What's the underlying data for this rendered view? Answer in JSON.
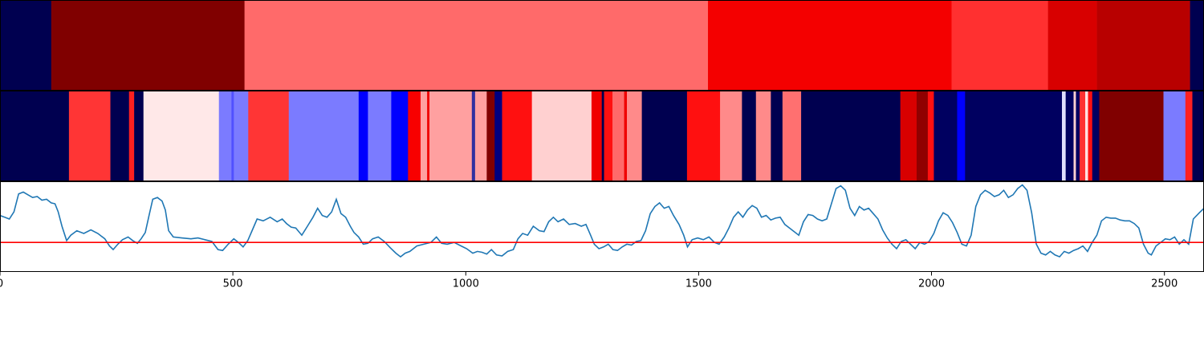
{
  "figure": {
    "background": "#ffffff",
    "frame_color": "#000000",
    "line_color": "#1f77b4",
    "threshold_color": "#ff0000"
  },
  "chart_data": [
    {
      "type": "heatmap",
      "panel": "top",
      "xlim": [
        0,
        2585
      ],
      "segments": [
        {
          "start": 0,
          "end": 110,
          "color": "#000050"
        },
        {
          "start": 110,
          "end": 525,
          "color": "#800000"
        },
        {
          "start": 525,
          "end": 1520,
          "color": "#ff6a6a"
        },
        {
          "start": 1520,
          "end": 2043,
          "color": "#f40000"
        },
        {
          "start": 2043,
          "end": 2250,
          "color": "#ff3030"
        },
        {
          "start": 2250,
          "end": 2355,
          "color": "#d80000"
        },
        {
          "start": 2355,
          "end": 2555,
          "color": "#b80000"
        },
        {
          "start": 2555,
          "end": 2585,
          "color": "#000050"
        }
      ]
    },
    {
      "type": "heatmap",
      "panel": "middle",
      "xlim": [
        0,
        2585
      ],
      "segments": [
        {
          "start": 0,
          "end": 148,
          "color": "#000050"
        },
        {
          "start": 148,
          "end": 237,
          "color": "#ff3535"
        },
        {
          "start": 237,
          "end": 277,
          "color": "#000050"
        },
        {
          "start": 277,
          "end": 288,
          "color": "#ff2020"
        },
        {
          "start": 288,
          "end": 308,
          "color": "#000050"
        },
        {
          "start": 308,
          "end": 470,
          "color": "#ffe8e8"
        },
        {
          "start": 470,
          "end": 497,
          "color": "#7b7bff"
        },
        {
          "start": 497,
          "end": 502,
          "color": "#5050ff"
        },
        {
          "start": 502,
          "end": 533,
          "color": "#7b7bff"
        },
        {
          "start": 533,
          "end": 620,
          "color": "#ff3535"
        },
        {
          "start": 620,
          "end": 770,
          "color": "#7b7bff"
        },
        {
          "start": 770,
          "end": 790,
          "color": "#0000ff"
        },
        {
          "start": 790,
          "end": 840,
          "color": "#7b7bff"
        },
        {
          "start": 840,
          "end": 876,
          "color": "#0000ff"
        },
        {
          "start": 876,
          "end": 903,
          "color": "#f80000"
        },
        {
          "start": 903,
          "end": 917,
          "color": "#ffa0a0"
        },
        {
          "start": 917,
          "end": 922,
          "color": "#f00000"
        },
        {
          "start": 922,
          "end": 1013,
          "color": "#ffa0a0"
        },
        {
          "start": 1013,
          "end": 1020,
          "color": "#3030a0"
        },
        {
          "start": 1020,
          "end": 1045,
          "color": "#ffa0a0"
        },
        {
          "start": 1045,
          "end": 1062,
          "color": "#800000"
        },
        {
          "start": 1062,
          "end": 1078,
          "color": "#000080"
        },
        {
          "start": 1078,
          "end": 1142,
          "color": "#ff1010"
        },
        {
          "start": 1142,
          "end": 1270,
          "color": "#ffd0d0"
        },
        {
          "start": 1270,
          "end": 1292,
          "color": "#f00000"
        },
        {
          "start": 1292,
          "end": 1297,
          "color": "#000050"
        },
        {
          "start": 1297,
          "end": 1315,
          "color": "#ff1010"
        },
        {
          "start": 1315,
          "end": 1340,
          "color": "#ff6a6a"
        },
        {
          "start": 1340,
          "end": 1346,
          "color": "#f00000"
        },
        {
          "start": 1346,
          "end": 1378,
          "color": "#ff8a8a"
        },
        {
          "start": 1378,
          "end": 1475,
          "color": "#000050"
        },
        {
          "start": 1475,
          "end": 1546,
          "color": "#ff1010"
        },
        {
          "start": 1546,
          "end": 1593,
          "color": "#ff8a8a"
        },
        {
          "start": 1593,
          "end": 1623,
          "color": "#000050"
        },
        {
          "start": 1623,
          "end": 1655,
          "color": "#ff8a8a"
        },
        {
          "start": 1655,
          "end": 1680,
          "color": "#000050"
        },
        {
          "start": 1680,
          "end": 1720,
          "color": "#ff7070"
        },
        {
          "start": 1720,
          "end": 1933,
          "color": "#000050"
        },
        {
          "start": 1933,
          "end": 1968,
          "color": "#d80000"
        },
        {
          "start": 1968,
          "end": 1992,
          "color": "#900000"
        },
        {
          "start": 1992,
          "end": 2005,
          "color": "#ff1010"
        },
        {
          "start": 2005,
          "end": 2055,
          "color": "#000060"
        },
        {
          "start": 2055,
          "end": 2072,
          "color": "#0000ff"
        },
        {
          "start": 2072,
          "end": 2280,
          "color": "#000060"
        },
        {
          "start": 2280,
          "end": 2288,
          "color": "#e0e0ff"
        },
        {
          "start": 2288,
          "end": 2305,
          "color": "#000060"
        },
        {
          "start": 2305,
          "end": 2310,
          "color": "#ffd0d0"
        },
        {
          "start": 2310,
          "end": 2318,
          "color": "#000060"
        },
        {
          "start": 2318,
          "end": 2330,
          "color": "#ff3030"
        },
        {
          "start": 2330,
          "end": 2336,
          "color": "#ffe0e0"
        },
        {
          "start": 2336,
          "end": 2345,
          "color": "#ff1010"
        },
        {
          "start": 2345,
          "end": 2360,
          "color": "#000060"
        },
        {
          "start": 2360,
          "end": 2498,
          "color": "#800000"
        },
        {
          "start": 2498,
          "end": 2545,
          "color": "#7b7bff"
        },
        {
          "start": 2545,
          "end": 2560,
          "color": "#ff2020"
        },
        {
          "start": 2560,
          "end": 2585,
          "color": "#000050"
        }
      ]
    },
    {
      "type": "line",
      "panel": "bottom",
      "xlim": [
        0,
        2585
      ],
      "ylim": [
        0,
        1
      ],
      "threshold": 0.32,
      "xticks": [
        0,
        500,
        1000,
        1500,
        2000,
        2500
      ],
      "xticklabels": [
        "0",
        "500",
        "1000",
        "1500",
        "2000",
        "2500"
      ],
      "points": [
        [
          0,
          0.62
        ],
        [
          10,
          0.6
        ],
        [
          20,
          0.58
        ],
        [
          30,
          0.66
        ],
        [
          40,
          0.86
        ],
        [
          50,
          0.88
        ],
        [
          60,
          0.85
        ],
        [
          70,
          0.82
        ],
        [
          80,
          0.83
        ],
        [
          90,
          0.79
        ],
        [
          100,
          0.8
        ],
        [
          110,
          0.76
        ],
        [
          118,
          0.75
        ],
        [
          125,
          0.66
        ],
        [
          133,
          0.5
        ],
        [
          143,
          0.34
        ],
        [
          152,
          0.4
        ],
        [
          165,
          0.45
        ],
        [
          180,
          0.42
        ],
        [
          195,
          0.46
        ],
        [
          210,
          0.42
        ],
        [
          225,
          0.36
        ],
        [
          235,
          0.28
        ],
        [
          243,
          0.24
        ],
        [
          253,
          0.3
        ],
        [
          263,
          0.35
        ],
        [
          275,
          0.38
        ],
        [
          285,
          0.34
        ],
        [
          295,
          0.31
        ],
        [
          303,
          0.36
        ],
        [
          312,
          0.43
        ],
        [
          320,
          0.62
        ],
        [
          328,
          0.8
        ],
        [
          338,
          0.82
        ],
        [
          348,
          0.78
        ],
        [
          355,
          0.68
        ],
        [
          362,
          0.45
        ],
        [
          372,
          0.38
        ],
        [
          390,
          0.37
        ],
        [
          410,
          0.36
        ],
        [
          425,
          0.37
        ],
        [
          440,
          0.35
        ],
        [
          455,
          0.33
        ],
        [
          468,
          0.24
        ],
        [
          478,
          0.23
        ],
        [
          490,
          0.3
        ],
        [
          502,
          0.36
        ],
        [
          512,
          0.32
        ],
        [
          522,
          0.27
        ],
        [
          532,
          0.34
        ],
        [
          542,
          0.46
        ],
        [
          552,
          0.58
        ],
        [
          565,
          0.56
        ],
        [
          580,
          0.6
        ],
        [
          595,
          0.55
        ],
        [
          606,
          0.58
        ],
        [
          615,
          0.53
        ],
        [
          625,
          0.49
        ],
        [
          635,
          0.48
        ],
        [
          648,
          0.4
        ],
        [
          660,
          0.5
        ],
        [
          672,
          0.6
        ],
        [
          682,
          0.7
        ],
        [
          692,
          0.62
        ],
        [
          702,
          0.6
        ],
        [
          712,
          0.66
        ],
        [
          722,
          0.8
        ],
        [
          732,
          0.64
        ],
        [
          742,
          0.6
        ],
        [
          752,
          0.5
        ],
        [
          760,
          0.43
        ],
        [
          770,
          0.38
        ],
        [
          780,
          0.3
        ],
        [
          790,
          0.31
        ],
        [
          800,
          0.36
        ],
        [
          812,
          0.38
        ],
        [
          825,
          0.33
        ],
        [
          838,
          0.26
        ],
        [
          850,
          0.2
        ],
        [
          860,
          0.16
        ],
        [
          870,
          0.2
        ],
        [
          880,
          0.22
        ],
        [
          895,
          0.28
        ],
        [
          910,
          0.3
        ],
        [
          925,
          0.32
        ],
        [
          937,
          0.38
        ],
        [
          948,
          0.31
        ],
        [
          960,
          0.3
        ],
        [
          975,
          0.32
        ],
        [
          990,
          0.28
        ],
        [
          1002,
          0.25
        ],
        [
          1015,
          0.2
        ],
        [
          1025,
          0.22
        ],
        [
          1035,
          0.21
        ],
        [
          1045,
          0.19
        ],
        [
          1055,
          0.24
        ],
        [
          1066,
          0.18
        ],
        [
          1078,
          0.17
        ],
        [
          1090,
          0.22
        ],
        [
          1102,
          0.24
        ],
        [
          1112,
          0.36
        ],
        [
          1122,
          0.42
        ],
        [
          1133,
          0.4
        ],
        [
          1145,
          0.5
        ],
        [
          1158,
          0.45
        ],
        [
          1168,
          0.44
        ],
        [
          1178,
          0.55
        ],
        [
          1188,
          0.6
        ],
        [
          1198,
          0.55
        ],
        [
          1210,
          0.58
        ],
        [
          1222,
          0.52
        ],
        [
          1235,
          0.53
        ],
        [
          1248,
          0.5
        ],
        [
          1258,
          0.52
        ],
        [
          1268,
          0.4
        ],
        [
          1276,
          0.3
        ],
        [
          1286,
          0.25
        ],
        [
          1296,
          0.27
        ],
        [
          1306,
          0.3
        ],
        [
          1316,
          0.24
        ],
        [
          1326,
          0.23
        ],
        [
          1336,
          0.27
        ],
        [
          1346,
          0.3
        ],
        [
          1356,
          0.29
        ],
        [
          1366,
          0.33
        ],
        [
          1376,
          0.34
        ],
        [
          1386,
          0.45
        ],
        [
          1396,
          0.64
        ],
        [
          1406,
          0.72
        ],
        [
          1416,
          0.76
        ],
        [
          1426,
          0.7
        ],
        [
          1436,
          0.72
        ],
        [
          1446,
          0.62
        ],
        [
          1458,
          0.52
        ],
        [
          1468,
          0.4
        ],
        [
          1476,
          0.27
        ],
        [
          1486,
          0.35
        ],
        [
          1498,
          0.37
        ],
        [
          1510,
          0.35
        ],
        [
          1522,
          0.38
        ],
        [
          1534,
          0.32
        ],
        [
          1544,
          0.3
        ],
        [
          1555,
          0.38
        ],
        [
          1565,
          0.48
        ],
        [
          1575,
          0.6
        ],
        [
          1585,
          0.66
        ],
        [
          1595,
          0.6
        ],
        [
          1605,
          0.68
        ],
        [
          1615,
          0.73
        ],
        [
          1625,
          0.7
        ],
        [
          1635,
          0.6
        ],
        [
          1645,
          0.62
        ],
        [
          1655,
          0.57
        ],
        [
          1665,
          0.59
        ],
        [
          1675,
          0.6
        ],
        [
          1685,
          0.52
        ],
        [
          1695,
          0.48
        ],
        [
          1705,
          0.44
        ],
        [
          1715,
          0.4
        ],
        [
          1725,
          0.55
        ],
        [
          1735,
          0.63
        ],
        [
          1745,
          0.62
        ],
        [
          1755,
          0.58
        ],
        [
          1765,
          0.56
        ],
        [
          1775,
          0.58
        ],
        [
          1785,
          0.75
        ],
        [
          1795,
          0.92
        ],
        [
          1805,
          0.95
        ],
        [
          1815,
          0.9
        ],
        [
          1825,
          0.7
        ],
        [
          1835,
          0.62
        ],
        [
          1845,
          0.72
        ],
        [
          1855,
          0.68
        ],
        [
          1865,
          0.7
        ],
        [
          1875,
          0.64
        ],
        [
          1885,
          0.58
        ],
        [
          1895,
          0.46
        ],
        [
          1905,
          0.37
        ],
        [
          1915,
          0.3
        ],
        [
          1925,
          0.25
        ],
        [
          1935,
          0.33
        ],
        [
          1945,
          0.35
        ],
        [
          1955,
          0.3
        ],
        [
          1965,
          0.25
        ],
        [
          1975,
          0.32
        ],
        [
          1985,
          0.3
        ],
        [
          1995,
          0.33
        ],
        [
          2005,
          0.42
        ],
        [
          2015,
          0.56
        ],
        [
          2025,
          0.65
        ],
        [
          2035,
          0.62
        ],
        [
          2045,
          0.54
        ],
        [
          2055,
          0.43
        ],
        [
          2065,
          0.3
        ],
        [
          2075,
          0.28
        ],
        [
          2085,
          0.4
        ],
        [
          2095,
          0.72
        ],
        [
          2105,
          0.85
        ],
        [
          2115,
          0.9
        ],
        [
          2125,
          0.87
        ],
        [
          2135,
          0.83
        ],
        [
          2145,
          0.85
        ],
        [
          2155,
          0.9
        ],
        [
          2165,
          0.82
        ],
        [
          2175,
          0.85
        ],
        [
          2185,
          0.92
        ],
        [
          2195,
          0.96
        ],
        [
          2205,
          0.9
        ],
        [
          2215,
          0.65
        ],
        [
          2225,
          0.3
        ],
        [
          2235,
          0.2
        ],
        [
          2245,
          0.18
        ],
        [
          2255,
          0.22
        ],
        [
          2265,
          0.18
        ],
        [
          2275,
          0.16
        ],
        [
          2285,
          0.22
        ],
        [
          2295,
          0.2
        ],
        [
          2305,
          0.23
        ],
        [
          2315,
          0.25
        ],
        [
          2325,
          0.28
        ],
        [
          2335,
          0.22
        ],
        [
          2345,
          0.32
        ],
        [
          2355,
          0.4
        ],
        [
          2365,
          0.56
        ],
        [
          2375,
          0.6
        ],
        [
          2385,
          0.59
        ],
        [
          2395,
          0.59
        ],
        [
          2405,
          0.57
        ],
        [
          2415,
          0.56
        ],
        [
          2425,
          0.56
        ],
        [
          2435,
          0.53
        ],
        [
          2445,
          0.48
        ],
        [
          2455,
          0.3
        ],
        [
          2465,
          0.2
        ],
        [
          2472,
          0.18
        ],
        [
          2482,
          0.28
        ],
        [
          2492,
          0.32
        ],
        [
          2502,
          0.36
        ],
        [
          2512,
          0.35
        ],
        [
          2522,
          0.38
        ],
        [
          2532,
          0.3
        ],
        [
          2542,
          0.35
        ],
        [
          2552,
          0.3
        ],
        [
          2562,
          0.58
        ],
        [
          2575,
          0.65
        ],
        [
          2585,
          0.7
        ]
      ]
    }
  ]
}
